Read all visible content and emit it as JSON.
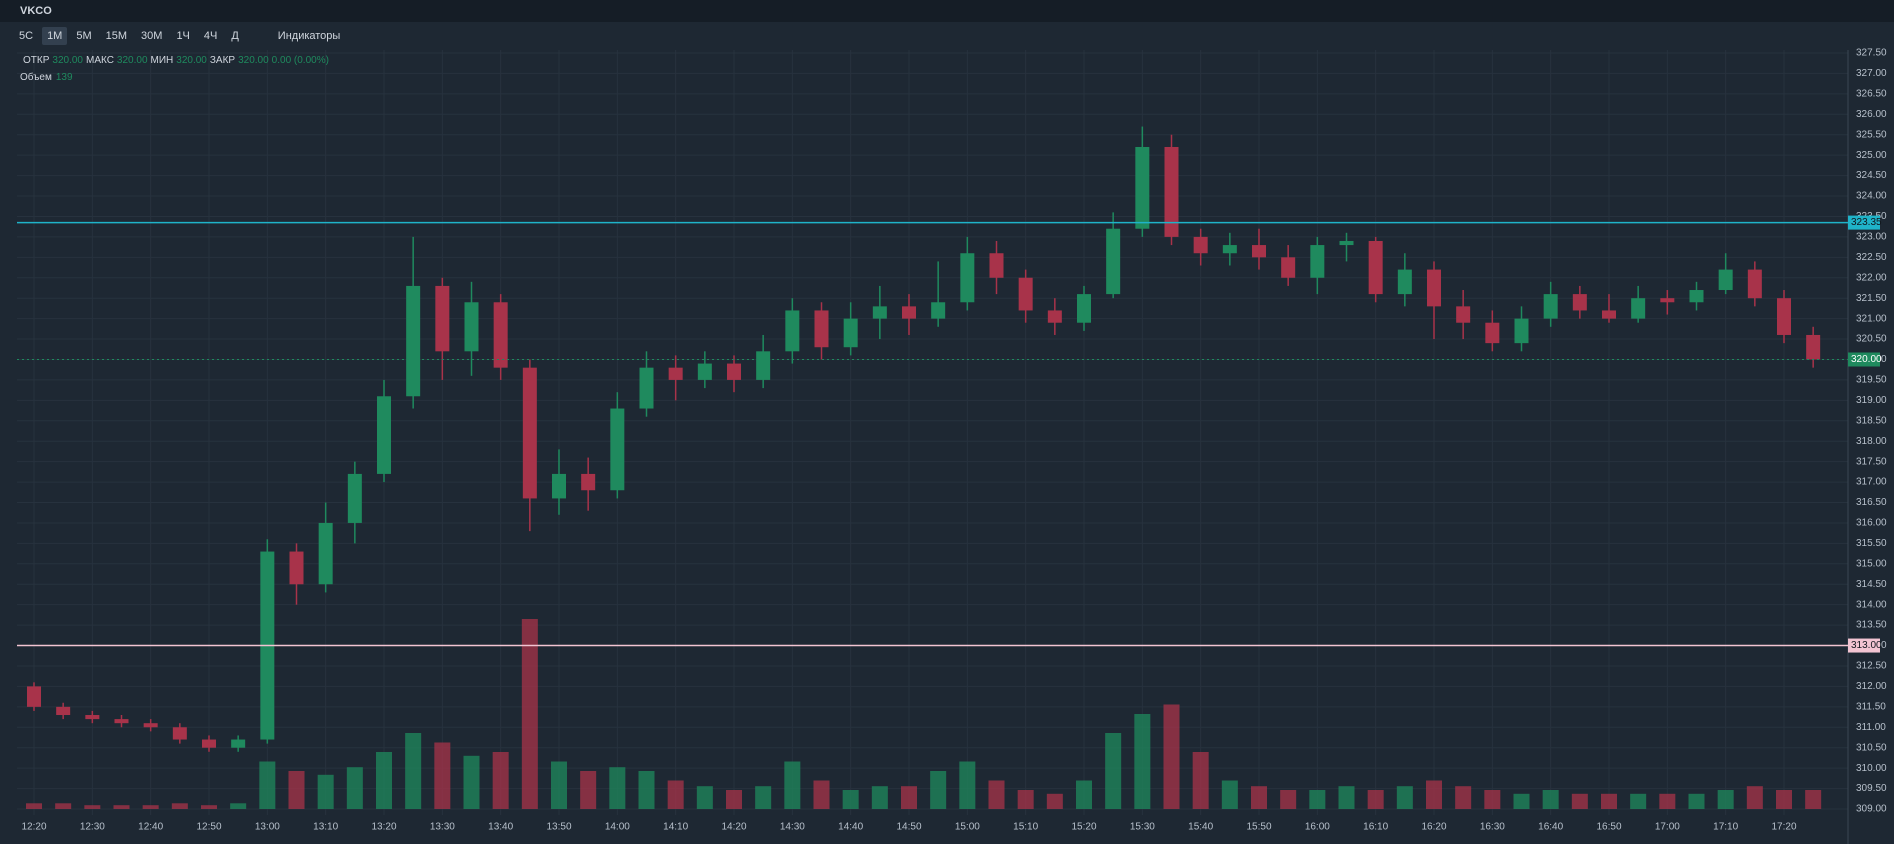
{
  "header": {
    "symbol": "VKCO"
  },
  "toolbar": {
    "timeframes": [
      "5С",
      "1М",
      "5М",
      "15М",
      "30М",
      "1Ч",
      "4Ч",
      "Д"
    ],
    "indicators": "Индикаторы"
  },
  "chart_data": {
    "type": "candlestick",
    "legend": {
      "items": [
        {
          "label": "ОТКР",
          "value": "320.00"
        },
        {
          "label": "МАКС",
          "value": "320.00"
        },
        {
          "label": "МИН",
          "value": "320.00"
        },
        {
          "label": "ЗАКР",
          "value": "320.00"
        }
      ],
      "change": "0.00 (0.00%)",
      "volume_label": "Объем",
      "volume_value": "139"
    },
    "up_color": "#1f8a5e",
    "down_color": "#a8334a",
    "open": [
      312,
      311.5,
      311.3,
      311.2,
      311.1,
      311.0,
      310.7,
      310.5,
      310.7,
      315.3,
      314.5,
      316.0,
      317.2,
      319.1,
      321.8,
      320.2,
      321.4,
      319.8,
      316.6,
      317.2,
      316.8,
      318.8,
      319.8,
      319.5,
      319.9,
      319.5,
      320.2,
      321.2,
      320.3,
      321.0,
      321.3,
      321.0,
      321.4,
      322.6,
      322.0,
      321.2,
      320.9,
      321.6,
      323.2,
      325.2,
      323.0,
      322.6,
      322.8,
      322.5,
      322.0,
      322.8,
      322.9,
      321.6,
      322.2,
      321.3,
      320.9,
      320.4,
      321.0,
      321.6,
      321.2,
      321.0,
      321.5,
      321.4,
      321.7,
      322.2,
      321.5,
      320.6
    ],
    "high": [
      312.1,
      311.6,
      311.4,
      311.3,
      311.2,
      311.1,
      310.8,
      310.8,
      315.6,
      315.5,
      316.5,
      317.5,
      319.5,
      323.0,
      322.0,
      321.9,
      321.6,
      320.0,
      317.8,
      317.6,
      319.2,
      320.2,
      320.1,
      320.2,
      320.1,
      320.6,
      321.5,
      321.4,
      321.4,
      321.8,
      321.6,
      322.4,
      323.0,
      322.9,
      322.2,
      321.5,
      321.8,
      323.6,
      325.7,
      325.5,
      323.2,
      323.1,
      323.2,
      322.8,
      323.0,
      323.1,
      323.0,
      322.6,
      322.4,
      321.7,
      321.2,
      321.3,
      321.9,
      321.8,
      321.6,
      321.8,
      321.7,
      321.9,
      322.6,
      322.4,
      321.7,
      320.8
    ],
    "low": [
      311.4,
      311.2,
      311.1,
      311.0,
      310.9,
      310.6,
      310.4,
      310.4,
      310.6,
      314.0,
      314.3,
      315.5,
      317.0,
      318.8,
      319.5,
      319.6,
      319.5,
      315.8,
      316.2,
      316.3,
      316.6,
      318.6,
      319.0,
      319.3,
      319.2,
      319.3,
      319.9,
      320.0,
      320.1,
      320.5,
      320.6,
      320.8,
      321.2,
      321.6,
      320.9,
      320.6,
      320.7,
      321.5,
      323.0,
      322.8,
      322.3,
      322.3,
      322.2,
      321.8,
      321.6,
      322.4,
      321.4,
      321.3,
      320.5,
      320.5,
      320.2,
      320.2,
      320.8,
      321.0,
      320.9,
      320.9,
      321.1,
      321.2,
      321.6,
      321.3,
      320.4,
      319.8
    ],
    "close": [
      311.5,
      311.3,
      311.2,
      311.1,
      311.0,
      310.7,
      310.5,
      310.7,
      315.3,
      314.5,
      316.0,
      317.2,
      319.1,
      321.8,
      320.2,
      321.4,
      319.8,
      316.6,
      317.2,
      316.8,
      318.8,
      319.8,
      319.5,
      319.9,
      319.5,
      320.2,
      321.2,
      320.3,
      321.0,
      321.3,
      321.0,
      321.4,
      322.6,
      322.0,
      321.2,
      320.9,
      321.6,
      323.2,
      325.2,
      323.0,
      322.6,
      322.8,
      322.5,
      322.0,
      322.8,
      322.9,
      321.6,
      322.2,
      321.3,
      320.9,
      320.4,
      321.0,
      321.6,
      321.2,
      321.0,
      321.5,
      321.4,
      321.7,
      322.2,
      321.5,
      320.6,
      320.0
    ],
    "volume": [
      3,
      3,
      2,
      2,
      2,
      3,
      2,
      3,
      25,
      20,
      18,
      22,
      30,
      40,
      35,
      28,
      30,
      100,
      25,
      20,
      22,
      20,
      15,
      12,
      10,
      12,
      25,
      15,
      10,
      12,
      12,
      20,
      25,
      15,
      10,
      8,
      15,
      40,
      50,
      55,
      30,
      15,
      12,
      10,
      10,
      12,
      10,
      12,
      15,
      12,
      10,
      8,
      10,
      8,
      8,
      8,
      8,
      8,
      10,
      12,
      10,
      10
    ],
    "price_lines": [
      {
        "value": 323.35,
        "label": "323.35",
        "color": "#1fb3c9"
      },
      {
        "value": 313,
        "label": "313.00",
        "color": "#f2c4d2"
      }
    ],
    "last_price": {
      "value": 320,
      "label": "320.00",
      "color": "#1f8a5e"
    },
    "xlim": [
      -0.2,
      62
    ],
    "xticks": [
      {
        "value": 0,
        "label": "12:20"
      },
      {
        "value": 2,
        "label": "12:30"
      },
      {
        "value": 4,
        "label": "12:40"
      },
      {
        "value": 6,
        "label": "12:50"
      },
      {
        "value": 8,
        "label": "13:00"
      },
      {
        "value": 10,
        "label": "13:10"
      },
      {
        "value": 12,
        "label": "13:20"
      },
      {
        "value": 14,
        "label": "13:30"
      },
      {
        "value": 16,
        "label": "13:40"
      },
      {
        "value": 18,
        "label": "13:50"
      },
      {
        "value": 20,
        "label": "14:00"
      },
      {
        "value": 22,
        "label": "14:10"
      },
      {
        "value": 24,
        "label": "14:20"
      },
      {
        "value": 26,
        "label": "14:30"
      },
      {
        "value": 28,
        "label": "14:40"
      },
      {
        "value": 30,
        "label": "14:50"
      },
      {
        "value": 32,
        "label": "15:00"
      },
      {
        "value": 34,
        "label": "15:10"
      },
      {
        "value": 36,
        "label": "15:20"
      },
      {
        "value": 38,
        "label": "15:30"
      },
      {
        "value": 40,
        "label": "15:40"
      },
      {
        "value": 42,
        "label": "15:50"
      },
      {
        "value": 44,
        "label": "16:00"
      },
      {
        "value": 46,
        "label": "16:10"
      },
      {
        "value": 48,
        "label": "16:20"
      },
      {
        "value": 50,
        "label": "16:30"
      },
      {
        "value": 52,
        "label": "16:40"
      },
      {
        "value": 54,
        "label": "16:50"
      },
      {
        "value": 56,
        "label": "17:00"
      },
      {
        "value": 58,
        "label": "17:10"
      },
      {
        "value": 60,
        "label": "17:20"
      }
    ],
    "ylim": [
      309,
      327.5
    ],
    "yticks": [
      {
        "value": 309,
        "label": "309.00"
      },
      {
        "value": 309.5,
        "label": "309.50"
      },
      {
        "value": 310,
        "label": "310.00"
      },
      {
        "value": 310.5,
        "label": "310.50"
      },
      {
        "value": 311,
        "label": "311.00"
      },
      {
        "value": 311.5,
        "label": "311.50"
      },
      {
        "value": 312,
        "label": "312.00"
      },
      {
        "value": 312.5,
        "label": "312.50"
      },
      {
        "value": 313,
        "label": "313.00"
      },
      {
        "value": 313.5,
        "label": "313.50"
      },
      {
        "value": 314,
        "label": "314.00"
      },
      {
        "value": 314.5,
        "label": "314.50"
      },
      {
        "value": 315,
        "label": "315.00"
      },
      {
        "value": 315.5,
        "label": "315.50"
      },
      {
        "value": 316,
        "label": "316.00"
      },
      {
        "value": 316.5,
        "label": "316.50"
      },
      {
        "value": 317,
        "label": "317.00"
      },
      {
        "value": 317.5,
        "label": "317.50"
      },
      {
        "value": 318,
        "label": "318.00"
      },
      {
        "value": 318.5,
        "label": "318.50"
      },
      {
        "value": 319,
        "label": "319.00"
      },
      {
        "value": 319.5,
        "label": "319.50"
      },
      {
        "value": 320,
        "label": "320.00"
      },
      {
        "value": 320.5,
        "label": "320.50"
      },
      {
        "value": 321,
        "label": "321.00"
      },
      {
        "value": 321.5,
        "label": "321.50"
      },
      {
        "value": 322,
        "label": "322.00"
      },
      {
        "value": 322.5,
        "label": "322.50"
      },
      {
        "value": 323,
        "label": "323.00"
      },
      {
        "value": 323.5,
        "label": "323.50"
      },
      {
        "value": 324,
        "label": "324.00"
      },
      {
        "value": 324.5,
        "label": "324.50"
      },
      {
        "value": 325,
        "label": "325.00"
      },
      {
        "value": 325.5,
        "label": "325.50"
      },
      {
        "value": 326,
        "label": "326.00"
      },
      {
        "value": 326.5,
        "label": "326.50"
      },
      {
        "value": 327,
        "label": "327.00"
      },
      {
        "value": 327.5,
        "label": "327.50"
      }
    ],
    "grid": true
  }
}
